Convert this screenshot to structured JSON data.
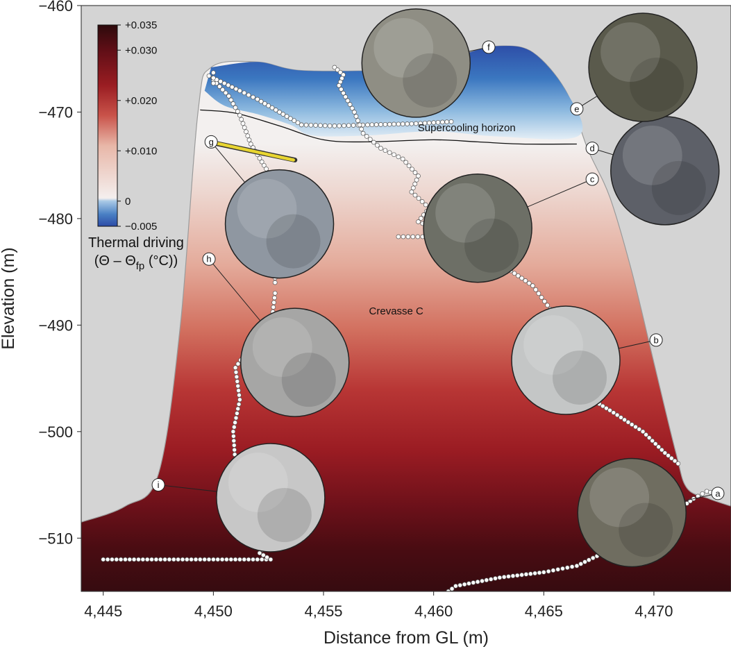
{
  "chart_data": {
    "type": "heatmap",
    "xlabel": "Distance from GL (m)",
    "ylabel": "Elevation (m)",
    "xlim": [
      4444,
      4473.5
    ],
    "ylim": [
      -515,
      -460
    ],
    "x_ticks": [
      4445,
      4450,
      4455,
      4460,
      4465,
      4470
    ],
    "x_tick_labels": [
      "4,445",
      "4,450",
      "4,455",
      "4,460",
      "4,465",
      "4,470"
    ],
    "y_ticks": [
      -460,
      -470,
      -480,
      -490,
      -500,
      -510
    ],
    "y_tick_labels": [
      "−460",
      "−470",
      "−480",
      "−490",
      "−500",
      "−510"
    ],
    "colorbar": {
      "label_line1": "Thermal driving",
      "label_line2": "(Θ – Θ",
      "label_sub": "fp",
      "label_line2_end": " (°C))",
      "range": [
        -0.005,
        0.035
      ],
      "ticks": [
        0.035,
        0.03,
        0.02,
        0.01,
        0,
        -0.005
      ],
      "tick_labels": [
        "+0.035",
        "+0.030",
        "+0.020",
        "+0.010",
        "0",
        "−0.005"
      ],
      "colors": [
        "#2b4aa6",
        "#6a9fd0",
        "#f4efee",
        "#e8b7a8",
        "#c9534a",
        "#9a1d22",
        "#5e0e16",
        "#2d0a0c"
      ]
    },
    "annotations": {
      "supercooling": "Supercooling horizon",
      "crevasse": "Crevasse C"
    },
    "supercooling_horizon": [
      [
        4449.4,
        -469.8
      ],
      [
        4451,
        -470.1
      ],
      [
        4453,
        -471.3
      ],
      [
        4455,
        -472.6
      ],
      [
        4457,
        -472.8
      ],
      [
        4460,
        -472.6
      ],
      [
        4462,
        -472.8
      ],
      [
        4464,
        -473.0
      ],
      [
        4466.5,
        -473.0
      ]
    ],
    "crevasse_outline": [
      [
        4444,
        -508.5
      ],
      [
        4446,
        -507.0
      ],
      [
        4447.5,
        -504
      ],
      [
        4448.5,
        -490
      ],
      [
        4449.3,
        -470
      ],
      [
        4449.9,
        -465.8
      ],
      [
        4452,
        -465.3
      ],
      [
        4454,
        -466.1
      ],
      [
        4458,
        -466.1
      ],
      [
        4460,
        -466.0
      ],
      [
        4461.5,
        -464.5
      ],
      [
        4463,
        -463.8
      ],
      [
        4464.5,
        -464.4
      ],
      [
        4466,
        -468.0
      ],
      [
        4467,
        -473.5
      ],
      [
        4468,
        -478
      ],
      [
        4469,
        -485
      ],
      [
        4470,
        -493.5
      ],
      [
        4471,
        -502
      ],
      [
        4471.5,
        -505.3
      ],
      [
        4472.5,
        -506.3
      ],
      [
        4473.5,
        -507
      ]
    ],
    "cold_patch_outline": [
      [
        4449.9,
        -465.8
      ],
      [
        4452,
        -465.3
      ],
      [
        4454,
        -466.1
      ],
      [
        4458,
        -466.1
      ],
      [
        4460,
        -466.0
      ],
      [
        4461.5,
        -464.5
      ],
      [
        4463,
        -463.8
      ],
      [
        4464.5,
        -464.4
      ],
      [
        4466,
        -468.0
      ],
      [
        4466.6,
        -472.2
      ],
      [
        4463,
        -472.3
      ],
      [
        4460,
        -471.8
      ],
      [
        4457,
        -472.2
      ],
      [
        4454.5,
        -472.2
      ],
      [
        4453.5,
        -471.2
      ],
      [
        4452,
        -470.2
      ],
      [
        4450.5,
        -469.4
      ],
      [
        4449.6,
        -468.0
      ]
    ],
    "rov_tracks": [
      {
        "points": [
          [
            4445,
            -512
          ],
          [
            4449,
            -512
          ],
          [
            4452.6,
            -512
          ],
          [
            4452.1,
            -511.4
          ],
          [
            4452.5,
            -510.5
          ],
          [
            4452,
            -508
          ],
          [
            4451.2,
            -506
          ],
          [
            4451.0,
            -503
          ],
          [
            4450.9,
            -500
          ],
          [
            4451.2,
            -497
          ],
          [
            4451.0,
            -494
          ],
          [
            4451.6,
            -492.2
          ],
          [
            4452.6,
            -490.5
          ],
          [
            4452.8,
            -487
          ]
        ]
      },
      {
        "points": [
          [
            4452.8,
            -486
          ],
          [
            4452.8,
            -483
          ]
        ]
      },
      {
        "points": [
          [
            4450.0,
            -467.0
          ],
          [
            4450.7,
            -468.5
          ],
          [
            4451.2,
            -470.3
          ],
          [
            4451.7,
            -473
          ],
          [
            4452.3,
            -475
          ],
          [
            4452.6,
            -476
          ]
        ]
      },
      {
        "points": [
          [
            4449.8,
            -466.6
          ],
          [
            4451.2,
            -468.0
          ],
          [
            4452.0,
            -468.8
          ],
          [
            4453.0,
            -470.0
          ],
          [
            4454.0,
            -471.2
          ]
        ]
      },
      {
        "points": [
          [
            4454.0,
            -471.2
          ],
          [
            4455.5,
            -471.3
          ],
          [
            4457,
            -471.2
          ],
          [
            4459,
            -471.1
          ],
          [
            4460.8,
            -470.9
          ]
        ]
      },
      {
        "points": [
          [
            4455.5,
            -465.8
          ],
          [
            4455.9,
            -466.5
          ],
          [
            4455.7,
            -467.5
          ],
          [
            4456.4,
            -470
          ],
          [
            4456.8,
            -472
          ],
          [
            4457.6,
            -473.4
          ],
          [
            4458.6,
            -474.4
          ],
          [
            4459.3,
            -476
          ],
          [
            4459.0,
            -477.5
          ],
          [
            4459.8,
            -479
          ],
          [
            4459.3,
            -480.3
          ],
          [
            4460.3,
            -481.1
          ],
          [
            4461.0,
            -482
          ],
          [
            4462.5,
            -483.5
          ],
          [
            4464.5,
            -486.3
          ],
          [
            4465.3,
            -488.5
          ],
          [
            4465.3,
            -490
          ]
        ]
      },
      {
        "points": [
          [
            4458.4,
            -481.7
          ],
          [
            4459.5,
            -481.7
          ],
          [
            4460.5,
            -481.7
          ]
        ]
      },
      {
        "points": [
          [
            4466.4,
            -496.0
          ],
          [
            4467.2,
            -497.0
          ],
          [
            4468.0,
            -498.0
          ],
          [
            4469.5,
            -500.0
          ],
          [
            4470.5,
            -502.0
          ],
          [
            4471.1,
            -503
          ]
        ]
      },
      {
        "points": [
          [
            4460,
            -516
          ],
          [
            4461,
            -514.5
          ],
          [
            4463,
            -513.7
          ],
          [
            4465,
            -513.2
          ],
          [
            4466.5,
            -512.6
          ],
          [
            4467.6,
            -511.5
          ]
        ]
      },
      {
        "points": [
          [
            4471.2,
            -507.2
          ],
          [
            4471.8,
            -506.3
          ],
          [
            4472.4,
            -505.6
          ],
          [
            4472.9,
            -505.9
          ]
        ]
      },
      {
        "points": [
          [
            4450.0,
            -466.3
          ],
          [
            4450.0,
            -467.3
          ]
        ]
      }
    ],
    "callouts": [
      {
        "label": "a",
        "x": 4472.9,
        "y": -505.8,
        "photo_x": 4469.0,
        "photo_y": -507.6
      },
      {
        "label": "b",
        "x": 4470.1,
        "y": -491.4,
        "photo_x": 4466.0,
        "photo_y": -493.3
      },
      {
        "label": "c",
        "x": 4467.2,
        "y": -476.3,
        "photo_x": 4462.0,
        "photo_y": -480.9
      },
      {
        "label": "d",
        "x": 4467.2,
        "y": -473.4,
        "photo_x": 4470.5,
        "photo_y": -475.5
      },
      {
        "label": "e",
        "x": 4466.5,
        "y": -469.7,
        "photo_x": 4469.5,
        "photo_y": -465.8
      },
      {
        "label": "f",
        "x": 4462.5,
        "y": -463.9,
        "photo_x": 4459.2,
        "photo_y": -465.4
      },
      {
        "label": "g",
        "x": 4449.9,
        "y": -472.8,
        "photo_x": 4453.0,
        "photo_y": -480.5
      },
      {
        "label": "h",
        "x": 4449.8,
        "y": -483.8,
        "photo_x": 4453.7,
        "photo_y": -493.5
      },
      {
        "label": "i",
        "x": 4447.5,
        "y": -505.0,
        "photo_x": 4452.6,
        "photo_y": -506.2
      }
    ],
    "instrument": {
      "x1": 4449.8,
      "y1": -472.8,
      "x2": 4453.7,
      "y2": -474.5
    },
    "photo_tints": [
      "#6f6d60",
      "#c4c6c6",
      "#6d6f66",
      "#5d6068",
      "#5a5a4c",
      "#8f8e84",
      "#8f97a1",
      "#a6a6a5",
      "#c7c7c7"
    ]
  }
}
